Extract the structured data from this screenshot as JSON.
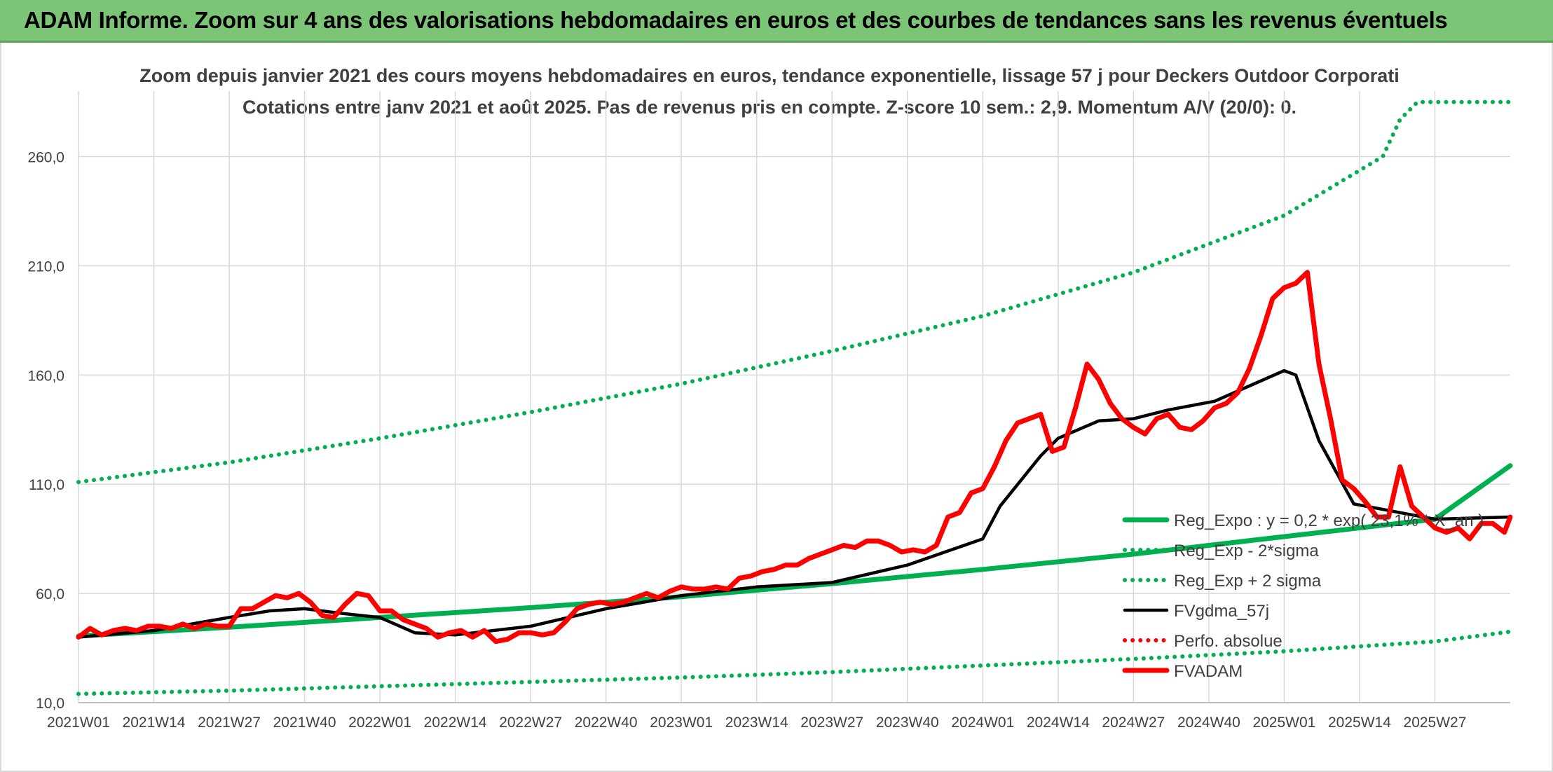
{
  "banner": {
    "title": "ADAM Informe. Zoom sur 4 ans des valorisations hebdomadaires en euros et des courbes de tendances sans les revenus éventuels"
  },
  "colors": {
    "banner_bg": "#7cc576",
    "trend_green": "#00b050",
    "black_line": "#000000",
    "red_line": "#ff0000",
    "grid": "#d9d9d9",
    "text": "#404040"
  },
  "chart_data": {
    "type": "line",
    "title": "Zoom depuis janvier 2021 des cours moyens hebdomadaires en euros, tendance exponentielle, lissage 57 j pour Deckers Outdoor Corporati",
    "subtitle": "Cotations entre janv 2021 et août 2025. Pas de revenus pris en compte. Z-score 10 sem.: 2,9. Momentum A/V (20/0): 0.",
    "xlabel": "",
    "ylabel": "",
    "ylim": [
      10,
      290
    ],
    "yticks": [
      10,
      60,
      110,
      160,
      210,
      260
    ],
    "ytick_labels": [
      "10,0",
      "60,0",
      "110,0",
      "160,0",
      "210,0",
      "260,0"
    ],
    "x_categories": [
      "2021W01",
      "2021W14",
      "2021W27",
      "2021W40",
      "2022W01",
      "2022W14",
      "2022W27",
      "2022W40",
      "2023W01",
      "2023W14",
      "2023W27",
      "2023W40",
      "2024W01",
      "2024W14",
      "2024W27",
      "2024W40",
      "2025W01",
      "2025W14",
      "2025W27"
    ],
    "x_last_week": 247,
    "grid": true,
    "legend_position": "right",
    "series": [
      {
        "name": "Reg_Expo : y = 0,2 * exp( 23,1% * X_an )",
        "style": "solid-thick",
        "color": "#00b050",
        "x": [
          0,
          26,
          52,
          78,
          104,
          130,
          156,
          182,
          208,
          234,
          247
        ],
        "y": [
          40.5,
          44.5,
          49,
          53.5,
          58.5,
          64.5,
          71,
          78,
          86,
          94,
          118.5
        ]
      },
      {
        "name": "Reg_Exp - 2*sigma",
        "style": "dotted",
        "color": "#00b050",
        "x": [
          0,
          26,
          52,
          78,
          104,
          130,
          156,
          182,
          208,
          234,
          247
        ],
        "y": [
          14,
          15.5,
          17.5,
          19.5,
          21.5,
          24,
          27,
          30,
          33.5,
          38,
          42.5
        ]
      },
      {
        "name": "Reg_Exp + 2 sigma",
        "style": "dotted",
        "color": "#00b050",
        "x": [
          0,
          26,
          52,
          78,
          104,
          130,
          156,
          182,
          208,
          225,
          228,
          231,
          247
        ],
        "y": [
          111,
          120,
          131,
          143,
          156,
          171,
          187,
          207,
          233,
          260,
          277,
          285,
          285
        ]
      },
      {
        "name": "FVgdma_57j",
        "style": "solid",
        "color": "#000000",
        "x": [
          0,
          13,
          26,
          33,
          39,
          45,
          52,
          58,
          65,
          78,
          91,
          104,
          117,
          130,
          143,
          156,
          159,
          166,
          169,
          176,
          182,
          188,
          196,
          208,
          210,
          214,
          220,
          234,
          247
        ],
        "y": [
          40,
          43,
          49,
          52,
          53,
          51,
          49,
          42,
          41,
          45,
          53,
          59,
          63,
          65,
          73,
          85,
          100,
          123,
          131,
          139,
          140,
          144,
          148,
          162,
          160,
          130,
          101,
          94,
          95
        ]
      },
      {
        "name": "Perfo. absolue",
        "style": "dotted",
        "color": "#ff0000",
        "x": [],
        "y": []
      },
      {
        "name": "FVADAM",
        "style": "solid-thick",
        "color": "#ff0000",
        "x": [
          0,
          2,
          4,
          6,
          8,
          10,
          12,
          14,
          16,
          18,
          20,
          22,
          24,
          26,
          28,
          30,
          32,
          34,
          36,
          38,
          40,
          42,
          44,
          46,
          48,
          50,
          52,
          54,
          56,
          58,
          60,
          62,
          64,
          66,
          68,
          70,
          72,
          74,
          76,
          78,
          80,
          82,
          84,
          86,
          88,
          90,
          92,
          94,
          96,
          98,
          100,
          102,
          104,
          106,
          108,
          110,
          112,
          114,
          116,
          118,
          120,
          122,
          124,
          126,
          128,
          130,
          132,
          134,
          136,
          138,
          140,
          142,
          144,
          146,
          148,
          150,
          152,
          154,
          156,
          158,
          160,
          162,
          164,
          166,
          168,
          170,
          172,
          174,
          176,
          178,
          180,
          182,
          184,
          186,
          188,
          190,
          192,
          194,
          196,
          198,
          200,
          202,
          204,
          206,
          208,
          210,
          212,
          214,
          216,
          218,
          220,
          222,
          224,
          226,
          228,
          230,
          232,
          234,
          236,
          238,
          240,
          242,
          244,
          246,
          247
        ],
        "y": [
          40,
          44,
          41,
          43,
          44,
          43,
          45,
          45,
          44,
          46,
          44,
          46,
          45,
          45,
          53,
          53,
          56,
          59,
          58,
          60,
          56,
          50,
          49,
          55,
          60,
          59,
          52,
          52,
          48,
          46,
          44,
          40,
          42,
          43,
          40,
          43,
          38,
          39,
          42,
          42,
          41,
          42,
          47,
          53,
          55,
          56,
          55,
          56,
          58,
          60,
          58,
          61,
          63,
          62,
          62,
          63,
          62,
          67,
          68,
          70,
          71,
          73,
          73,
          76,
          78,
          80,
          82,
          81,
          84,
          84,
          82,
          79,
          80,
          79,
          82,
          95,
          97,
          106,
          108,
          118,
          130,
          138,
          140,
          142,
          125,
          127,
          145,
          165,
          158,
          147,
          140,
          136,
          133,
          140,
          142,
          136,
          135,
          139,
          145,
          147,
          152,
          163,
          178,
          195,
          200,
          202,
          207,
          165,
          140,
          112,
          108,
          102,
          95,
          95,
          118,
          100,
          95,
          90,
          88,
          90,
          85,
          92,
          92,
          88,
          95
        ]
      }
    ]
  }
}
